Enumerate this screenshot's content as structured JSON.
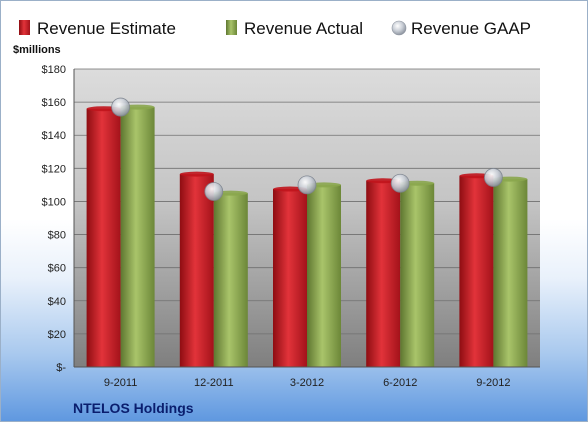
{
  "chart_data": {
    "type": "bar",
    "categories": [
      "9-2011",
      "12-2011",
      "3-2012",
      "6-2012",
      "9-2012"
    ],
    "series": [
      {
        "name": "Revenue Estimate",
        "values": [
          156,
          116.5,
          107.5,
          112.5,
          115.5
        ],
        "color": "#c0141c"
      },
      {
        "name": "Revenue Actual",
        "values": [
          157,
          105,
          110,
          111,
          113.5
        ],
        "color": "#8aa64c"
      },
      {
        "name": "Revenue GAAP",
        "values": [
          157,
          106,
          110,
          111,
          114.5
        ],
        "color": "#b9bfc8",
        "style": "marker"
      }
    ],
    "ylabel": "$millions",
    "ylim": [
      0,
      180
    ],
    "yticks": [
      0,
      20,
      40,
      60,
      80,
      100,
      120,
      140,
      160,
      180
    ],
    "ytick_labels": [
      "$-",
      "$20",
      "$40",
      "$60",
      "$80",
      "$100",
      "$120",
      "$140",
      "$160",
      "$180"
    ],
    "grid": true,
    "legend": "top"
  },
  "footer": {
    "company": "NTELOS Holdings"
  }
}
